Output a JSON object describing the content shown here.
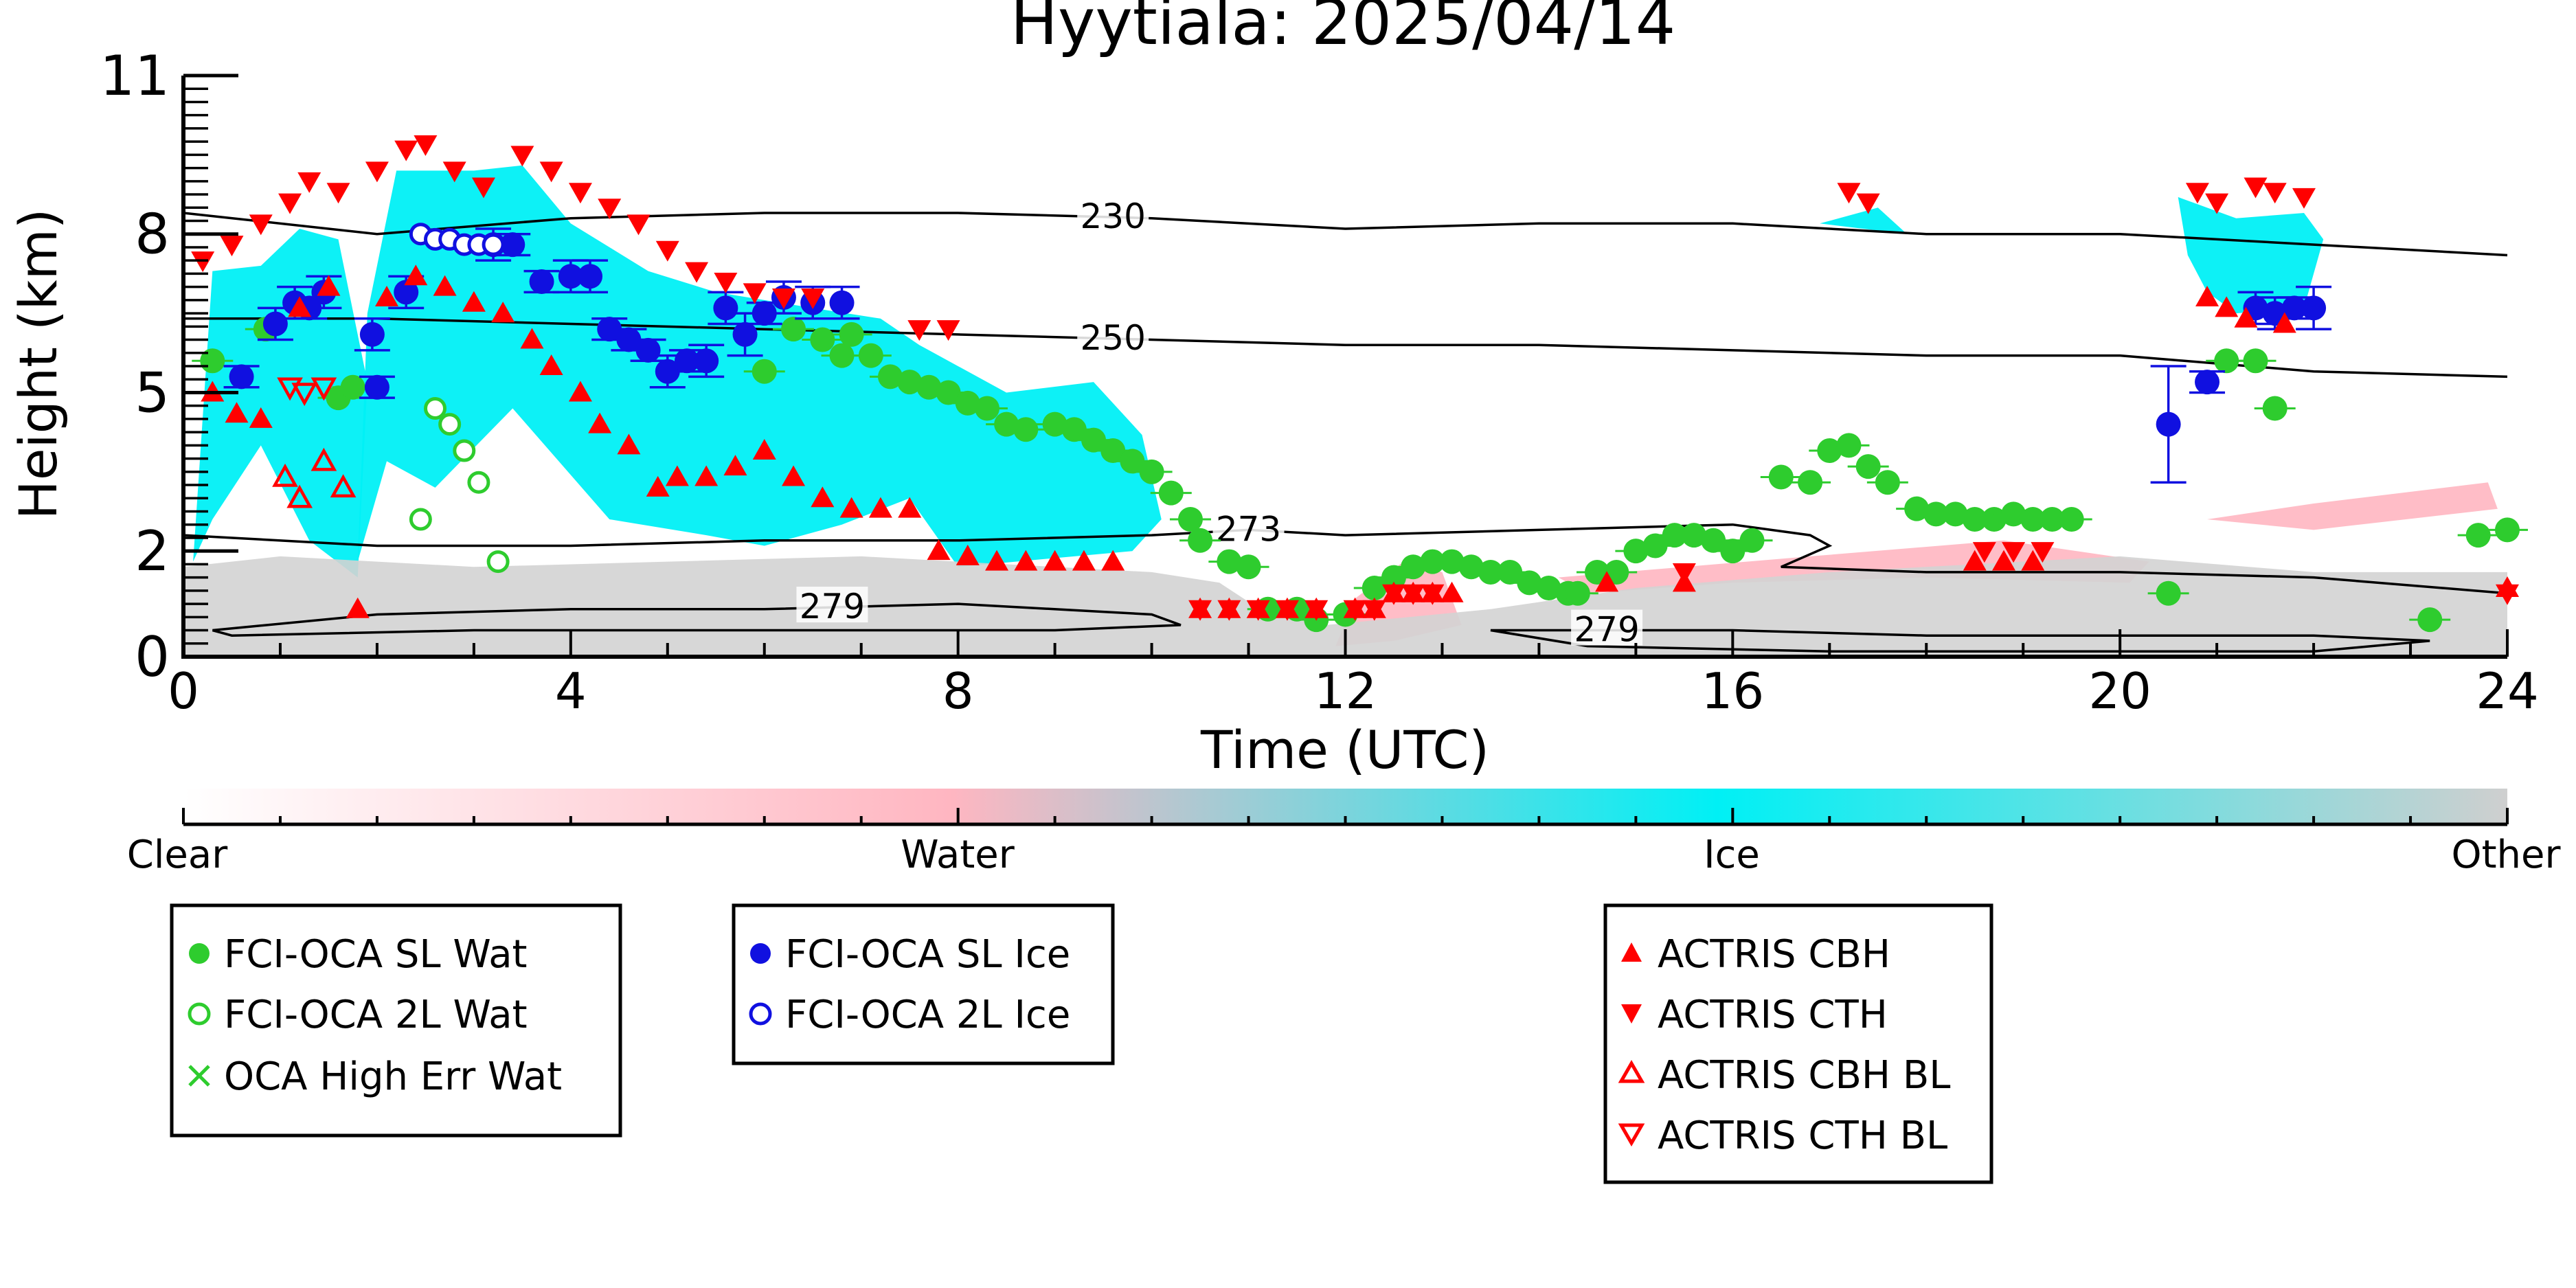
{
  "chart_data": {
    "type": "scatter",
    "title": "Hyytiala: 2025/04/14",
    "xlabel": "Time (UTC)",
    "ylabel": "Height (km)",
    "xlim": [
      0,
      24
    ],
    "ylim": [
      0,
      11
    ],
    "x_ticks": [
      "0",
      "4",
      "8",
      "12",
      "16",
      "20",
      "24"
    ],
    "y_ticks": [
      "0",
      "2",
      "5",
      "8",
      "11"
    ],
    "grid": false,
    "colorbar": {
      "labels": [
        "Clear",
        "Water",
        "Ice",
        "Other"
      ],
      "colors": [
        "#ffffff",
        "#ffb6c1",
        "#00f0f5",
        "#cfcfcf"
      ]
    },
    "cloud_regions": [
      {
        "type": "ice",
        "polygon": [
          [
            0.1,
            1.8
          ],
          [
            0.3,
            7.3
          ],
          [
            0.8,
            7.4
          ],
          [
            1.2,
            8.1
          ],
          [
            1.6,
            7.9
          ],
          [
            1.9,
            5.2
          ],
          [
            1.8,
            1.5
          ],
          [
            1.3,
            2.2
          ],
          [
            0.8,
            4.0
          ],
          [
            0.3,
            2.6
          ]
        ]
      },
      {
        "type": "ice",
        "polygon": [
          [
            1.8,
            1.8
          ],
          [
            1.9,
            6.5
          ],
          [
            2.2,
            9.2
          ],
          [
            3.0,
            9.2
          ],
          [
            3.5,
            9.3
          ],
          [
            4.0,
            8.2
          ],
          [
            4.8,
            7.3
          ],
          [
            5.5,
            6.9
          ],
          [
            6.5,
            6.6
          ],
          [
            7.2,
            6.4
          ],
          [
            7.6,
            5.9
          ],
          [
            8.5,
            5.0
          ],
          [
            9.4,
            5.2
          ],
          [
            9.9,
            4.2
          ],
          [
            10.1,
            2.6
          ],
          [
            9.8,
            2.0
          ],
          [
            8.0,
            1.7
          ],
          [
            7.5,
            3.0
          ],
          [
            6.8,
            2.5
          ],
          [
            6.0,
            2.1
          ],
          [
            5.4,
            2.3
          ],
          [
            4.4,
            2.6
          ],
          [
            3.4,
            4.7
          ],
          [
            2.6,
            3.2
          ],
          [
            2.1,
            3.7
          ]
        ]
      },
      {
        "type": "ice",
        "polygon": [
          [
            16.9,
            8.2
          ],
          [
            17.5,
            8.5
          ],
          [
            17.8,
            8.0
          ]
        ]
      },
      {
        "type": "ice",
        "polygon": [
          [
            20.6,
            8.7
          ],
          [
            21.2,
            8.3
          ],
          [
            21.9,
            8.4
          ],
          [
            22.1,
            7.9
          ],
          [
            21.9,
            6.6
          ],
          [
            21.2,
            6.5
          ],
          [
            20.9,
            6.9
          ],
          [
            20.7,
            7.6
          ]
        ]
      },
      {
        "type": "water",
        "polygon": [
          [
            11.9,
            0.2
          ],
          [
            12.1,
            1.1
          ],
          [
            12.6,
            1.8
          ],
          [
            13.0,
            1.6
          ],
          [
            13.2,
            0.6
          ],
          [
            12.5,
            0.3
          ]
        ]
      },
      {
        "type": "water",
        "polygon": [
          [
            14.2,
            1.5
          ],
          [
            16.8,
            1.9
          ],
          [
            18.8,
            2.2
          ],
          [
            20.3,
            1.8
          ],
          [
            20.1,
            1.4
          ],
          [
            18.0,
            1.5
          ],
          [
            16.0,
            1.4
          ],
          [
            14.5,
            1.2
          ]
        ]
      },
      {
        "type": "water",
        "polygon": [
          [
            20.9,
            2.6
          ],
          [
            22.0,
            2.9
          ],
          [
            23.8,
            3.3
          ],
          [
            23.9,
            2.8
          ],
          [
            22.0,
            2.4
          ]
        ]
      },
      {
        "type": "other",
        "polygon": [
          [
            0.0,
            0.0
          ],
          [
            0.0,
            1.7
          ],
          [
            1.0,
            1.9
          ],
          [
            3.0,
            1.7
          ],
          [
            5.0,
            1.8
          ],
          [
            7.0,
            1.9
          ],
          [
            8.0,
            1.8
          ],
          [
            10.0,
            1.6
          ],
          [
            10.7,
            1.4
          ],
          [
            11.2,
            0.8
          ],
          [
            11.8,
            0.6
          ],
          [
            13.5,
            0.9
          ],
          [
            15.0,
            1.3
          ],
          [
            17.0,
            1.6
          ],
          [
            20.0,
            1.9
          ],
          [
            22.0,
            1.6
          ],
          [
            24.0,
            1.6
          ],
          [
            24.0,
            0.0
          ]
        ]
      }
    ],
    "contours": [
      {
        "label": "230",
        "label_x": 9.6,
        "x": [
          0,
          2,
          4,
          6,
          8,
          10,
          12,
          14,
          16,
          18,
          20,
          22,
          24
        ],
        "y": [
          8.4,
          8.0,
          8.3,
          8.4,
          8.4,
          8.3,
          8.1,
          8.2,
          8.2,
          8.0,
          8.0,
          7.8,
          7.6
        ]
      },
      {
        "label": "250",
        "label_x": 9.6,
        "x": [
          0,
          2,
          4,
          6,
          8,
          10,
          12,
          14,
          16,
          18,
          20,
          22,
          24
        ],
        "y": [
          6.4,
          6.4,
          6.3,
          6.2,
          6.1,
          6.0,
          5.9,
          5.9,
          5.8,
          5.7,
          5.7,
          5.4,
          5.3
        ]
      },
      {
        "label": "273",
        "label_x": 11.0,
        "x": [
          0,
          2,
          4,
          6,
          8,
          10,
          11,
          12,
          14,
          16,
          16.8,
          17.0,
          16.5,
          18,
          20,
          22,
          24
        ],
        "y": [
          2.3,
          2.1,
          2.1,
          2.2,
          2.2,
          2.3,
          2.4,
          2.3,
          2.4,
          2.5,
          2.3,
          2.1,
          1.7,
          1.6,
          1.6,
          1.5,
          1.2
        ]
      },
      {
        "label": "279",
        "label_x": 6.7,
        "x": [
          0.3,
          2,
          4,
          6,
          8,
          10,
          10.3,
          9.0,
          6.0,
          3.0,
          0.5,
          0.3
        ],
        "y": [
          0.5,
          0.8,
          0.9,
          0.9,
          1.0,
          0.8,
          0.6,
          0.5,
          0.5,
          0.5,
          0.4,
          0.5
        ]
      },
      {
        "label": "279",
        "label_x": 14.7,
        "x": [
          13.5,
          16,
          18,
          20,
          22,
          23.2,
          22.0,
          19.5,
          17.0,
          14.5,
          13.5
        ],
        "y": [
          0.5,
          0.5,
          0.4,
          0.4,
          0.4,
          0.3,
          0.1,
          0.1,
          0.1,
          0.2,
          0.5
        ]
      }
    ],
    "series": [
      {
        "name": "FCI-OCA SL Wat",
        "marker": "filled-circle",
        "color": "#2ecc2e",
        "x": [
          0.3,
          0.85,
          1.6,
          1.75,
          6.0,
          6.3,
          6.6,
          6.8,
          6.9,
          7.1,
          7.3,
          7.5,
          7.7,
          7.9,
          8.1,
          8.3,
          8.5,
          8.7,
          9.0,
          9.2,
          9.4,
          9.6,
          9.8,
          10.0,
          10.2,
          10.4,
          10.5,
          10.8,
          11.0,
          11.2,
          11.5,
          11.7,
          12.0,
          12.3,
          12.5,
          12.7,
          12.9,
          13.1,
          13.3,
          13.5,
          13.7,
          13.9,
          14.1,
          14.3,
          14.4,
          14.6,
          14.8,
          15.0,
          15.2,
          15.4,
          15.6,
          15.8,
          16.0,
          16.2,
          16.5,
          16.8,
          17.0,
          17.2,
          17.4,
          17.6,
          17.9,
          18.1,
          18.3,
          18.5,
          18.7,
          18.9,
          19.1,
          19.3,
          19.5,
          20.5,
          21.1,
          21.4,
          21.6,
          23.2,
          23.7,
          24.0
        ],
        "y": [
          5.6,
          6.2,
          4.9,
          5.1,
          5.4,
          6.2,
          6.0,
          5.7,
          6.1,
          5.7,
          5.3,
          5.2,
          5.1,
          5.0,
          4.8,
          4.7,
          4.4,
          4.3,
          4.4,
          4.3,
          4.1,
          3.9,
          3.7,
          3.5,
          3.1,
          2.6,
          2.2,
          1.8,
          1.7,
          0.9,
          0.9,
          0.7,
          0.8,
          1.3,
          1.5,
          1.7,
          1.8,
          1.8,
          1.7,
          1.6,
          1.6,
          1.4,
          1.3,
          1.2,
          1.2,
          1.6,
          1.6,
          2.0,
          2.1,
          2.3,
          2.3,
          2.2,
          2.0,
          2.2,
          3.4,
          3.3,
          3.9,
          4.0,
          3.6,
          3.3,
          2.8,
          2.7,
          2.7,
          2.6,
          2.6,
          2.7,
          2.6,
          2.6,
          2.6,
          1.2,
          5.6,
          5.6,
          4.7,
          0.7,
          2.3,
          2.4
        ]
      },
      {
        "name": "FCI-OCA 2L Wat",
        "marker": "open-circle",
        "color": "#2ecc2e",
        "x": [
          2.45,
          2.6,
          2.75,
          2.9,
          3.05,
          3.25
        ],
        "y": [
          2.6,
          4.7,
          4.4,
          3.9,
          3.3,
          1.8
        ]
      },
      {
        "name": "OCA High Err Wat",
        "marker": "x",
        "color": "#2ecc2e",
        "x": [],
        "y": []
      },
      {
        "name": "FCI-OCA SL Ice",
        "marker": "filled-circle",
        "color": "#1010e0",
        "x": [
          0.6,
          0.95,
          1.15,
          1.3,
          1.45,
          1.95,
          2.0,
          2.3,
          3.2,
          3.4,
          3.7,
          4.0,
          4.2,
          4.4,
          4.6,
          4.8,
          5.0,
          5.2,
          5.4,
          5.6,
          5.8,
          6.0,
          6.2,
          6.5,
          6.8,
          20.5,
          20.9,
          21.4,
          21.6,
          21.8,
          22.0
        ],
        "y": [
          5.3,
          6.3,
          6.7,
          6.6,
          6.9,
          6.1,
          5.1,
          6.9,
          7.8,
          7.8,
          7.1,
          7.2,
          7.2,
          6.2,
          6.0,
          5.8,
          5.4,
          5.6,
          5.6,
          6.6,
          6.1,
          6.5,
          6.8,
          6.7,
          6.7,
          4.4,
          5.2,
          6.6,
          6.5,
          6.6,
          6.6
        ],
        "yerr": [
          0.2,
          0.3,
          0.3,
          0.2,
          0.3,
          0.3,
          0.2,
          0.3,
          0.3,
          0.2,
          0.2,
          0.3,
          0.3,
          0.2,
          0.2,
          0.2,
          0.3,
          0.2,
          0.3,
          0.3,
          0.4,
          0.2,
          0.3,
          0.3,
          0.3,
          1.1,
          0.2,
          0.3,
          0.3,
          0.2,
          0.4
        ]
      },
      {
        "name": "FCI-OCA 2L Ice",
        "marker": "open-circle",
        "color": "#1010e0",
        "x": [
          2.45,
          2.6,
          2.75,
          2.9,
          3.05,
          3.2
        ],
        "y": [
          8.0,
          7.9,
          7.9,
          7.8,
          7.8,
          7.8
        ]
      },
      {
        "name": "ACTRIS CBH",
        "marker": "triangle-up",
        "color": "#ff0000",
        "x": [
          0.3,
          0.55,
          0.8,
          1.2,
          1.5,
          1.8,
          2.1,
          2.4,
          2.7,
          3.0,
          3.3,
          3.6,
          3.8,
          4.1,
          4.3,
          4.6,
          4.9,
          5.1,
          5.4,
          5.7,
          6.0,
          6.3,
          6.6,
          6.9,
          7.2,
          7.5,
          7.8,
          8.1,
          8.4,
          8.7,
          9.0,
          9.3,
          9.6,
          10.5,
          10.8,
          11.1,
          11.4,
          11.7,
          12.1,
          12.3,
          12.5,
          12.7,
          12.9,
          13.1,
          14.7,
          15.5,
          18.5,
          18.8,
          19.1,
          20.9,
          21.1,
          21.3,
          21.7,
          24.0
        ],
        "y": [
          5.0,
          4.6,
          4.5,
          6.6,
          7.0,
          0.9,
          6.8,
          7.2,
          7.0,
          6.7,
          6.5,
          6.0,
          5.5,
          5.0,
          4.4,
          4.0,
          3.2,
          3.4,
          3.4,
          3.6,
          3.9,
          3.4,
          3.0,
          2.8,
          2.8,
          2.8,
          2.0,
          1.9,
          1.8,
          1.8,
          1.8,
          1.8,
          1.8,
          0.9,
          0.9,
          0.9,
          0.9,
          0.9,
          0.9,
          0.9,
          1.2,
          1.2,
          1.2,
          1.2,
          1.4,
          1.4,
          1.8,
          1.8,
          1.8,
          6.8,
          6.6,
          6.4,
          6.3,
          1.3
        ],
        "yerr": []
      },
      {
        "name": "ACTRIS CTH",
        "marker": "triangle-down",
        "color": "#ff0000",
        "x": [
          0.2,
          0.5,
          0.8,
          1.1,
          1.3,
          1.6,
          2.0,
          2.3,
          2.5,
          2.8,
          3.1,
          3.5,
          3.8,
          4.1,
          4.4,
          4.7,
          5.0,
          5.3,
          5.6,
          5.9,
          6.2,
          6.5,
          7.6,
          7.9,
          10.5,
          10.8,
          11.1,
          11.4,
          11.7,
          12.1,
          12.3,
          12.5,
          12.7,
          12.9,
          15.5,
          17.2,
          17.4,
          18.6,
          18.9,
          19.2,
          20.8,
          21.0,
          21.4,
          21.6,
          21.9,
          24.0
        ],
        "y": [
          7.5,
          7.8,
          8.2,
          8.6,
          9.0,
          8.8,
          9.2,
          9.6,
          9.7,
          9.2,
          8.9,
          9.5,
          9.2,
          8.8,
          8.5,
          8.2,
          7.7,
          7.3,
          7.1,
          6.9,
          6.8,
          6.8,
          6.2,
          6.2,
          0.9,
          0.9,
          0.9,
          0.9,
          0.9,
          0.9,
          0.9,
          1.2,
          1.2,
          1.2,
          1.6,
          8.8,
          8.6,
          2.0,
          2.0,
          2.0,
          8.8,
          8.6,
          8.9,
          8.8,
          8.7,
          1.2
        ]
      },
      {
        "name": "ACTRIS CBH BL",
        "marker": "open-triangle-up",
        "color": "#ff0000",
        "x": [
          1.05,
          1.2,
          1.45,
          1.65
        ],
        "y": [
          3.4,
          3.0,
          3.7,
          3.2
        ]
      },
      {
        "name": "ACTRIS CTH BL",
        "marker": "open-triangle-down",
        "color": "#ff0000",
        "x": [
          1.1,
          1.25,
          1.45
        ],
        "y": [
          5.1,
          5.0,
          5.1
        ]
      }
    ]
  }
}
